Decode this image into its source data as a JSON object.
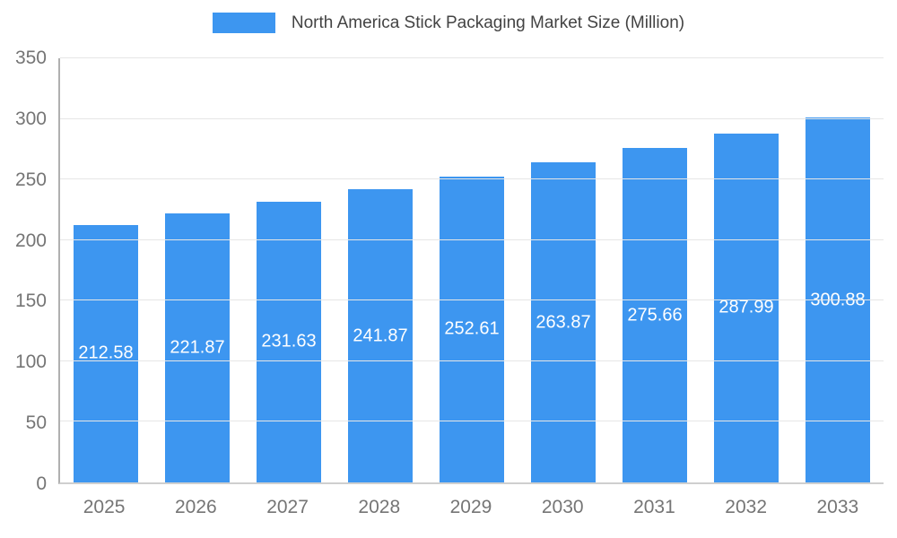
{
  "legend": {
    "swatch_color": "#3d96f0"
  },
  "chart_data": {
    "type": "bar",
    "title": "North America Stick Packaging Market Size (Million)",
    "categories": [
      "2025",
      "2026",
      "2027",
      "2028",
      "2029",
      "2030",
      "2031",
      "2032",
      "2033"
    ],
    "values": [
      212.58,
      221.87,
      231.63,
      241.87,
      252.61,
      263.87,
      275.66,
      287.99,
      300.88
    ],
    "xlabel": "",
    "ylabel": "",
    "ylim": [
      0,
      350
    ],
    "yticks": [
      0,
      50,
      100,
      150,
      200,
      250,
      300,
      350
    ],
    "grid": true,
    "legend_position": "top",
    "bar_color": "#3d96f0",
    "value_label_color": "#ffffff",
    "axis_text_color": "#757575"
  }
}
